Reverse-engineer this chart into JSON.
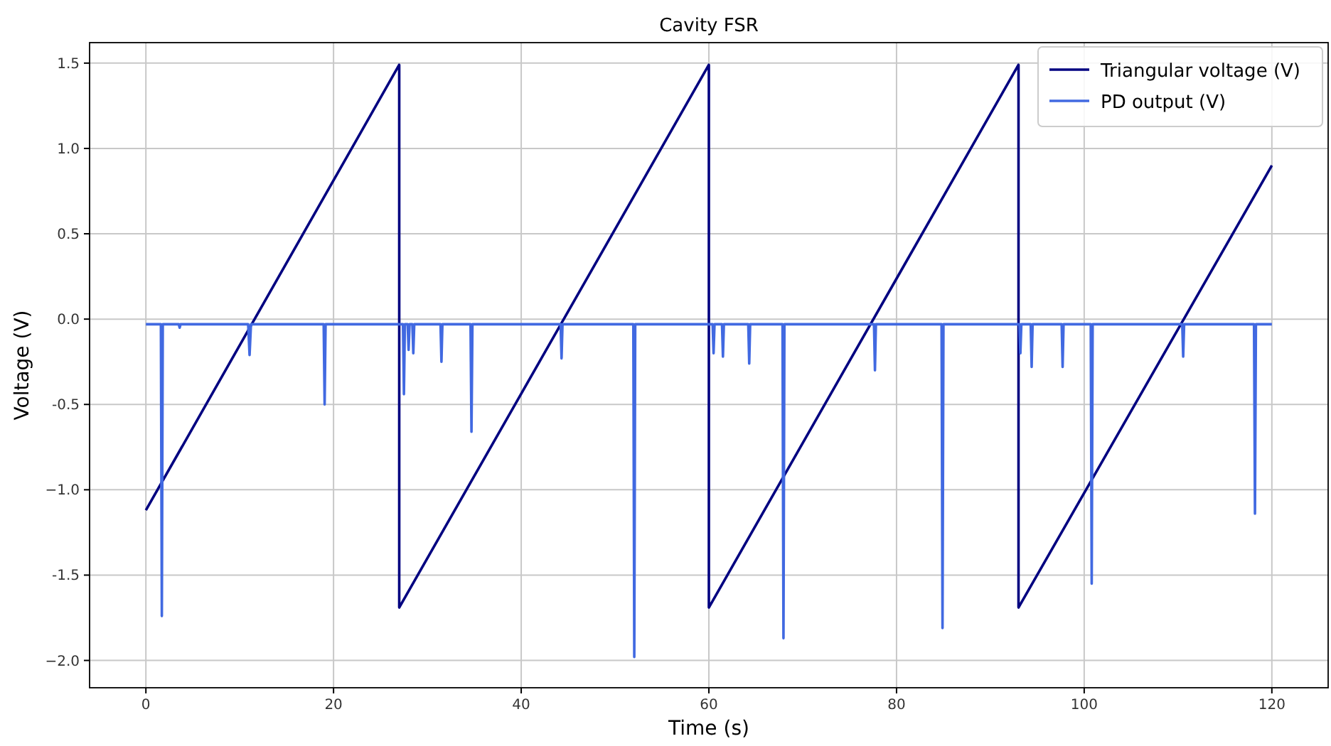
{
  "chart_data": {
    "type": "line",
    "title": "Cavity FSR",
    "xlabel": "Time (s)",
    "ylabel": "Voltage (V)",
    "xlim": [
      -6,
      126
    ],
    "ylim": [
      -2.16,
      1.62
    ],
    "xticks": [
      0,
      20,
      40,
      60,
      80,
      100,
      120
    ],
    "yticks": [
      {
        "value": -2,
        "label": "−2.0"
      },
      -1.5,
      {
        "value": -1,
        "label": "−1.0"
      },
      -0.5,
      {
        "value": 0,
        "label": "0.0"
      },
      0.5,
      {
        "value": 1,
        "label": "1.0"
      },
      1.5
    ],
    "grid": true,
    "legend": "top right",
    "line_style": "solid",
    "series": [
      {
        "name": "Triangular voltage (V)",
        "color": "#000080",
        "x": [
          0,
          27,
          27,
          60,
          60,
          93,
          93,
          120
        ],
        "values": [
          -1.12,
          1.49,
          -1.69,
          1.49,
          -1.69,
          1.49,
          -1.69,
          0.9
        ]
      },
      {
        "name": "PD output (V)",
        "color": "#4169e1",
        "x": [
          0,
          1.6,
          1.7,
          1.8,
          3.5,
          3.6,
          3.7,
          10.9,
          11.05,
          11.2,
          18.95,
          19.05,
          19.15,
          27.4,
          27.5,
          27.6,
          27.9,
          28.0,
          28.1,
          28.4,
          28.5,
          28.6,
          31.4,
          31.5,
          31.6,
          34.6,
          34.7,
          34.8,
          44.2,
          44.3,
          44.4,
          51.95,
          52.05,
          52.15,
          60.4,
          60.5,
          60.6,
          61.4,
          61.5,
          61.6,
          64.2,
          64.3,
          64.4,
          67.85,
          67.95,
          68.05,
          77.6,
          77.7,
          77.8,
          84.8,
          84.9,
          85.0,
          93.1,
          93.2,
          93.3,
          94.3,
          94.4,
          94.5,
          97.6,
          97.7,
          97.8,
          100.7,
          100.8,
          100.9,
          110.45,
          110.55,
          110.65,
          118.1,
          118.2,
          118.3,
          120
        ],
        "values": [
          -0.03,
          -0.03,
          -1.74,
          -0.03,
          -0.03,
          -0.05,
          -0.03,
          -0.03,
          -0.21,
          -0.03,
          -0.03,
          -0.5,
          -0.03,
          -0.03,
          -0.44,
          -0.03,
          -0.03,
          -0.18,
          -0.03,
          -0.03,
          -0.2,
          -0.03,
          -0.03,
          -0.25,
          -0.03,
          -0.03,
          -0.66,
          -0.03,
          -0.03,
          -0.23,
          -0.03,
          -0.03,
          -1.98,
          -0.03,
          -0.03,
          -0.2,
          -0.03,
          -0.03,
          -0.22,
          -0.03,
          -0.03,
          -0.26,
          -0.03,
          -0.03,
          -1.87,
          -0.03,
          -0.03,
          -0.3,
          -0.03,
          -0.03,
          -1.81,
          -0.03,
          -0.03,
          -0.2,
          -0.03,
          -0.03,
          -0.28,
          -0.03,
          -0.03,
          -0.28,
          -0.03,
          -0.03,
          -1.55,
          -0.03,
          -0.03,
          -0.22,
          -0.03,
          -0.03,
          -1.14,
          -0.03,
          -0.03
        ]
      }
    ]
  }
}
